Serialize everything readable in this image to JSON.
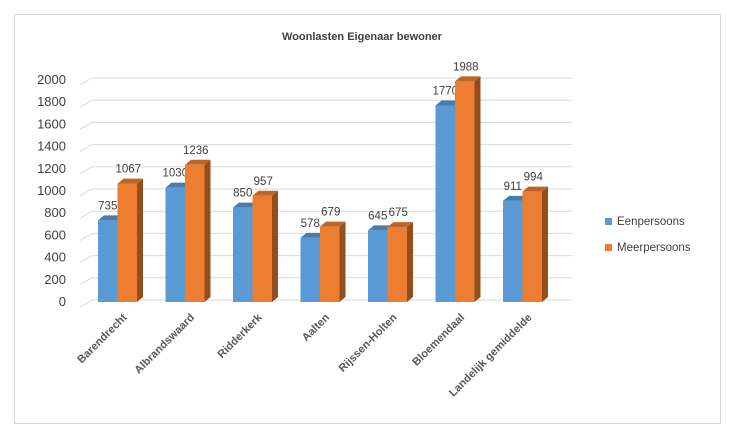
{
  "chart_data": {
    "type": "bar",
    "title": "Woonlasten Eigenaar bewoner",
    "categories": [
      "Barendrecht",
      "Albrandswaard",
      "Ridderkerk",
      "Aalten",
      "Rijssen-Holten",
      "Bloemendaal",
      "Landelijk gemiddelde"
    ],
    "series": [
      {
        "name": "Eenpersoons",
        "color": "#5b9bd5",
        "values": [
          735,
          1030,
          850,
          578,
          645,
          1770,
          911
        ]
      },
      {
        "name": "Meerpersoons",
        "color": "#ed7d31",
        "values": [
          1067,
          1236,
          957,
          679,
          675,
          1988,
          994
        ]
      }
    ],
    "ylim": [
      0,
      2000
    ],
    "yticks": [
      0,
      200,
      400,
      600,
      800,
      1000,
      1200,
      1400,
      1600,
      1800,
      2000
    ],
    "grid": true,
    "legend": "right",
    "xlabel": "",
    "ylabel": ""
  }
}
